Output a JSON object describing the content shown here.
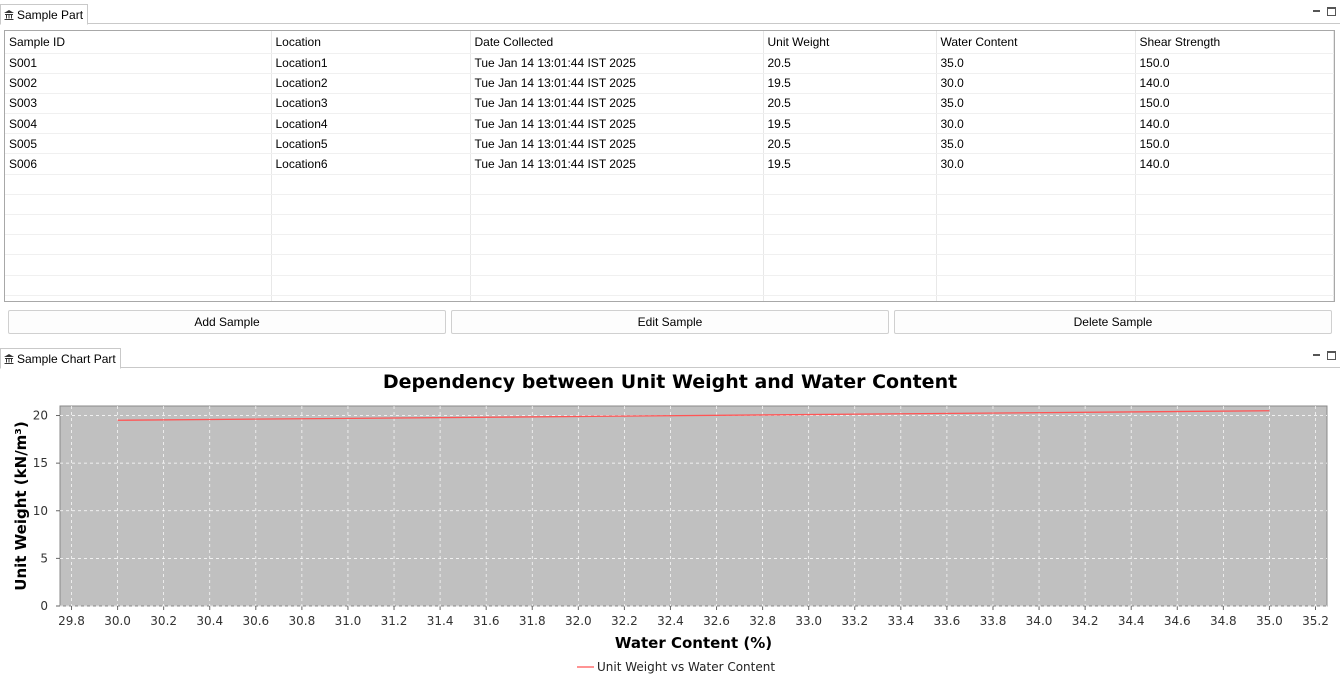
{
  "table_part": {
    "tab_label": "Sample Part",
    "columns": [
      "Sample ID",
      "Location",
      "Date Collected",
      "Unit Weight",
      "Water Content",
      "Shear Strength"
    ],
    "rows": [
      [
        "S001",
        "Location1",
        "Tue Jan 14 13:01:44 IST 2025",
        "20.5",
        "35.0",
        "150.0"
      ],
      [
        "S002",
        "Location2",
        "Tue Jan 14 13:01:44 IST 2025",
        "19.5",
        "30.0",
        "140.0"
      ],
      [
        "S003",
        "Location3",
        "Tue Jan 14 13:01:44 IST 2025",
        "20.5",
        "35.0",
        "150.0"
      ],
      [
        "S004",
        "Location4",
        "Tue Jan 14 13:01:44 IST 2025",
        "19.5",
        "30.0",
        "140.0"
      ],
      [
        "S005",
        "Location5",
        "Tue Jan 14 13:01:44 IST 2025",
        "20.5",
        "35.0",
        "150.0"
      ],
      [
        "S006",
        "Location6",
        "Tue Jan 14 13:01:44 IST 2025",
        "19.5",
        "30.0",
        "140.0"
      ]
    ],
    "buttons": {
      "add": "Add Sample",
      "edit": "Edit Sample",
      "delete": "Delete Sample"
    }
  },
  "chart_part": {
    "tab_label": "Sample Chart Part"
  },
  "chart_data": {
    "type": "line",
    "title": "Dependency between Unit Weight and Water Content",
    "xlabel": "Water Content (%)",
    "ylabel": "Unit Weight (kN/m³)",
    "xlim": [
      29.75,
      35.25
    ],
    "ylim": [
      0,
      21
    ],
    "x_ticks": [
      "29.8",
      "30.0",
      "30.2",
      "30.4",
      "30.6",
      "30.8",
      "31.0",
      "31.2",
      "31.4",
      "31.6",
      "31.8",
      "32.0",
      "32.2",
      "32.4",
      "32.6",
      "32.8",
      "33.0",
      "33.2",
      "33.4",
      "33.6",
      "33.8",
      "34.0",
      "34.2",
      "34.4",
      "34.6",
      "34.8",
      "35.0",
      "35.2"
    ],
    "y_ticks": [
      "0",
      "5",
      "10",
      "15",
      "20"
    ],
    "grid": true,
    "legend": "bottom-center",
    "plot_background": "#c0c0c0",
    "series": [
      {
        "name": "Unit Weight vs Water Content",
        "color": "#ff5555",
        "x": [
          30.0,
          35.0
        ],
        "y": [
          19.5,
          20.5
        ]
      }
    ]
  }
}
